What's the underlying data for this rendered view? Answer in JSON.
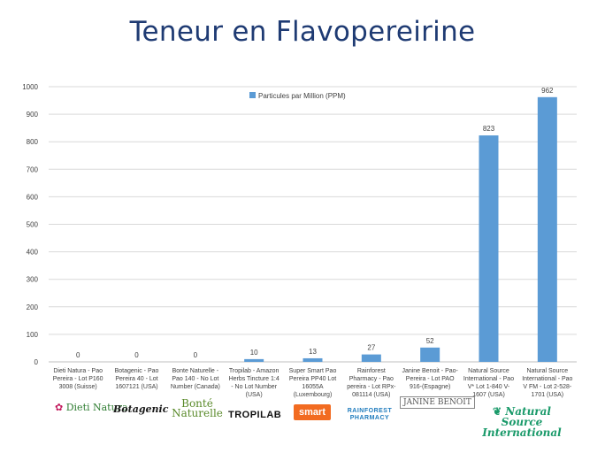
{
  "title": "Teneur en Flavopereirine",
  "chart_data": {
    "type": "bar",
    "title": "Teneur en Flavopereirine",
    "categories": [
      "Dieti Natura - Pao Pereira - Lot P160 3008 (Suisse)",
      "Botagenic - Pao Pereira 40 - Lot 1607121 (USA)",
      "Bonte Naturelle - Pao 140 - No Lot Number (Canada)",
      "Tropilab - Amazon Herbs Tincture 1:4 - No Lot Number (USA)",
      "Super Smart Pao Pereira PP40 Lot 16055A (Luxembourg)",
      "Rainforest Pharmacy - Pao pereira - Lot RPx-081114 (USA)",
      "Janine Benoit - Pao Pereira - Lot PAO 916-(Espagne)",
      "Natural Source International - Pao V* Lot 1-840 V-1607 (USA)",
      "Natural Source International - Pao V FM - Lot 2-528-1701 (USA)"
    ],
    "category_lines": [
      [
        "Dieti Natura - Pao",
        "Pereira - Lot P160",
        "3008 (Suisse)"
      ],
      [
        "Botagenic - Pao",
        "Pereira 40 - Lot",
        "1607121 (USA)"
      ],
      [
        "Bonte Naturelle -",
        "Pao 140 - No Lot",
        "Number (Canada)"
      ],
      [
        "Tropilab - Amazon",
        "Herbs Tincture 1:4",
        "- No Lot Number",
        "(USA)"
      ],
      [
        "Super Smart Pao",
        "Pereira PP40 Lot",
        "16055A",
        "(Luxembourg)"
      ],
      [
        "Rainforest",
        "Pharmacy - Pao",
        "pereira - Lot RPx-",
        "081114 (USA)"
      ],
      [
        "Janine Benoit - Pao-",
        "Pereira - Lot PAO",
        "916-(Espagne)"
      ],
      [
        "Natural Source",
        "International - Pao",
        "V* Lot 1-840 V-",
        "1607 (USA)"
      ],
      [
        "Natural Source",
        "International - Pao",
        "V FM - Lot 2-528-",
        "1701 (USA)"
      ]
    ],
    "series": [
      {
        "name": "Particules par Million (PPM)",
        "values": [
          0,
          0,
          0,
          10,
          13,
          27,
          52,
          823,
          962
        ],
        "color": "#5b9bd5"
      }
    ],
    "value_labels": [
      "0",
      "0",
      "0",
      "10",
      "13",
      "27",
      "52",
      "823",
      "962"
    ],
    "ylim": [
      0,
      1000
    ],
    "yticks": [
      "0",
      "100",
      "200",
      "300",
      "400",
      "500",
      "600",
      "700",
      "800",
      "900",
      "1000"
    ],
    "grid": true,
    "legend_position": "top-center"
  },
  "brands": [
    {
      "name": "dieti-natura-logo",
      "text": "Dieti Natura"
    },
    {
      "name": "botagenic-logo",
      "text": "Botagenic"
    },
    {
      "name": "bonte-naturelle-logo",
      "text": "Bonté Naturelle"
    },
    {
      "name": "tropilab-logo",
      "text": "TROPILAB"
    },
    {
      "name": "super-smart-logo",
      "text": "smart"
    },
    {
      "name": "rainforest-pharmacy-logo",
      "text": "RAINFOREST PHARMACY"
    },
    {
      "name": "janine-benoit-logo",
      "text": "JANINE BENOIT"
    },
    {
      "name": "natural-source-logo",
      "text": "Natural Source International"
    }
  ],
  "colors": {
    "bar": "#5b9bd5",
    "title": "#1f3b73",
    "grid": "#d9d9d9",
    "text": "#404040"
  }
}
